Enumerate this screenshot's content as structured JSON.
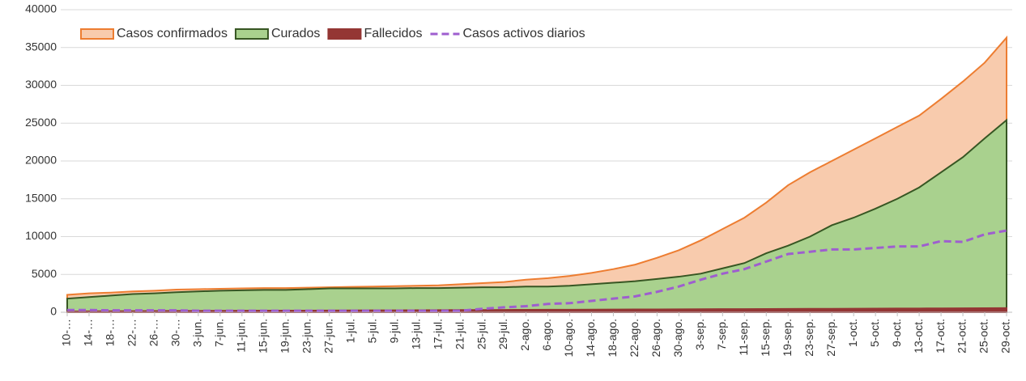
{
  "chart_data": {
    "type": "area",
    "categories": [
      "10-…",
      "14-…",
      "18-…",
      "22-…",
      "26-…",
      "30-…",
      "3-jun.",
      "7-jun.",
      "11-jun.",
      "15-jun.",
      "19-jun.",
      "23-jun.",
      "27-jun.",
      "1-jul.",
      "5-jul.",
      "9-jul.",
      "13-jul.",
      "17-jul.",
      "21-jul.",
      "25-jul.",
      "29-jul.",
      "2-ago.",
      "6-ago.",
      "10-ago.",
      "14-ago.",
      "18-ago.",
      "22-ago.",
      "26-ago.",
      "30-ago.",
      "3-sep.",
      "7-sep.",
      "11-sep.",
      "15-sep.",
      "19-sep.",
      "23-sep.",
      "27-sep.",
      "1-oct.",
      "5-oct.",
      "9-oct.",
      "13-oct.",
      "17-oct.",
      "21-oct.",
      "25-oct.",
      "29-oct."
    ],
    "series": [
      {
        "name": "Casos confirmados",
        "type": "area",
        "color": "#f8cbad",
        "stroke": "#ed7d31",
        "values": [
          2300,
          2500,
          2600,
          2750,
          2850,
          3000,
          3050,
          3100,
          3150,
          3200,
          3200,
          3250,
          3300,
          3350,
          3400,
          3450,
          3500,
          3550,
          3700,
          3850,
          4000,
          4300,
          4500,
          4800,
          5200,
          5700,
          6300,
          7200,
          8200,
          9500,
          11000,
          12500,
          14500,
          16800,
          18500,
          20000,
          21500,
          23000,
          24500,
          26000,
          28200,
          30500,
          33000,
          36300
        ]
      },
      {
        "name": "Curados",
        "type": "area",
        "color": "#a9d18e",
        "stroke": "#375623",
        "values": [
          1800,
          2000,
          2200,
          2400,
          2500,
          2650,
          2750,
          2850,
          2900,
          2950,
          2950,
          3050,
          3150,
          3150,
          3150,
          3150,
          3200,
          3200,
          3250,
          3300,
          3300,
          3400,
          3400,
          3500,
          3700,
          3900,
          4100,
          4400,
          4700,
          5100,
          5800,
          6500,
          7800,
          8800,
          10000,
          11500,
          12500,
          13700,
          15000,
          16500,
          18500,
          20500,
          23000,
          25400
        ]
      },
      {
        "name": "Fallecidos",
        "type": "area",
        "color": "#943634",
        "stroke": "#943634",
        "values": [
          100,
          120,
          140,
          150,
          160,
          170,
          180,
          190,
          200,
          210,
          210,
          220,
          230,
          240,
          250,
          260,
          270,
          280,
          290,
          300,
          310,
          320,
          330,
          340,
          350,
          360,
          370,
          380,
          390,
          400,
          410,
          420,
          430,
          440,
          450,
          460,
          470,
          480,
          490,
          500,
          510,
          520,
          530,
          550
        ]
      },
      {
        "name": "Casos activos diarios",
        "type": "line",
        "dashed": true,
        "color": "#9e5ecf",
        "values": [
          300,
          300,
          250,
          250,
          250,
          250,
          200,
          200,
          200,
          200,
          200,
          200,
          200,
          200,
          200,
          200,
          200,
          200,
          200,
          450,
          650,
          800,
          1100,
          1200,
          1500,
          1800,
          2100,
          2700,
          3400,
          4300,
          5100,
          5700,
          6700,
          7700,
          8000,
          8300,
          8300,
          8500,
          8700,
          8700,
          9400,
          9300,
          10300,
          10800
        ]
      }
    ],
    "ylim": [
      0,
      40000
    ],
    "yticks": [
      0,
      5000,
      10000,
      15000,
      20000,
      25000,
      30000,
      35000,
      40000
    ],
    "grid": true,
    "legend": "top-left"
  }
}
